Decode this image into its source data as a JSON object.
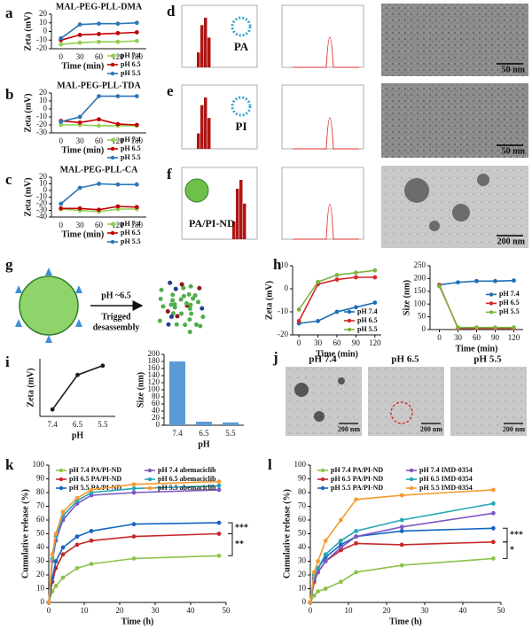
{
  "chart_data": [
    {
      "type": "line",
      "panel": "a",
      "title": "MAL-PEG-PLL-DMA",
      "ylabel": "Zeta (mV)",
      "xlabel": "Time (min)",
      "categories": [
        "0",
        "30",
        "60",
        "120",
        "180"
      ],
      "ylim": [
        -20,
        20
      ],
      "yticks": [
        -20,
        -10,
        0,
        10,
        20
      ],
      "legend": "below right",
      "series": [
        {
          "name": "pH 7.4",
          "color": "#92d050",
          "values": [
            -15,
            -13,
            -12,
            -12,
            -11
          ]
        },
        {
          "name": "pH 6.5",
          "color": "#c00000",
          "values": [
            -10,
            -4,
            -3,
            -2,
            -1
          ]
        },
        {
          "name": "pH 5.5",
          "color": "#2e75b6",
          "values": [
            -8,
            8,
            9,
            9,
            10
          ]
        }
      ]
    },
    {
      "type": "line",
      "panel": "b",
      "title": "MAL-PEG-PLL-TDA",
      "ylabel": "Zeta (mV)",
      "xlabel": "Time (min)",
      "categories": [
        "0",
        "30",
        "60",
        "120",
        "180"
      ],
      "ylim": [
        -30,
        20
      ],
      "yticks": [
        -30,
        -20,
        -10,
        0,
        10,
        20
      ],
      "legend": "below right",
      "series": [
        {
          "name": "pH 7.4",
          "color": "#92d050",
          "values": [
            -20,
            -20,
            -21,
            -21,
            -21
          ]
        },
        {
          "name": "pH 6.5",
          "color": "#c00000",
          "values": [
            -15,
            -17,
            -13,
            -19,
            -20
          ]
        },
        {
          "name": "pH 5.5",
          "color": "#2e75b6",
          "values": [
            -16,
            -10,
            16,
            16,
            16
          ]
        }
      ]
    },
    {
      "type": "line",
      "panel": "c",
      "title": "MAL-PEG-PLL-CA",
      "ylabel": "Zeta (mV)",
      "xlabel": "Time (min)",
      "categories": [
        "0",
        "30",
        "60",
        "120",
        "180"
      ],
      "ylim": [
        -40,
        20
      ],
      "yticks": [
        -40,
        -30,
        -20,
        -10,
        0,
        10,
        20
      ],
      "legend": "below right",
      "series": [
        {
          "name": "pH 7.4",
          "color": "#92d050",
          "values": [
            -28,
            -30,
            -32,
            -28,
            -28
          ]
        },
        {
          "name": "pH 6.5",
          "color": "#c00000",
          "values": [
            -27,
            -27,
            -29,
            -24,
            -25
          ]
        },
        {
          "name": "pH 5.5",
          "color": "#2e75b6",
          "values": [
            -20,
            4,
            10,
            9,
            9
          ]
        }
      ]
    },
    {
      "type": "line",
      "panel": "h",
      "ylabel": "Zeta (mV)",
      "xlabel": "Time (min)",
      "x": [
        0,
        30,
        60,
        90,
        120
      ],
      "xlim": [
        -10,
        130
      ],
      "xticks": [
        0,
        30,
        60,
        90,
        120
      ],
      "ylim": [
        -20,
        10
      ],
      "yticks": [
        -20,
        -10,
        0,
        10
      ],
      "legend": "lower right",
      "series": [
        {
          "name": "pH 7.4",
          "color": "#1f6fb5",
          "values": [
            -15,
            -14,
            -10,
            -8,
            -6
          ]
        },
        {
          "name": "pH 6.5",
          "color": "#d62728",
          "values": [
            -14,
            2,
            4,
            5,
            5
          ]
        },
        {
          "name": "pH 5.5",
          "color": "#7cb342",
          "values": [
            -9,
            3,
            6,
            7,
            8
          ]
        }
      ]
    },
    {
      "type": "line",
      "ylabel": "Size (nm)",
      "xlabel": "Time (min)",
      "x": [
        0,
        30,
        60,
        90,
        120
      ],
      "xlim": [
        -15,
        135
      ],
      "xticks": [
        0,
        30,
        60,
        90,
        120
      ],
      "ylim": [
        0,
        250
      ],
      "yticks": [
        0,
        50,
        100,
        150,
        200,
        250
      ],
      "legend": "right",
      "series": [
        {
          "name": "pH 7.4",
          "color": "#1f6fb5",
          "values": [
            175,
            185,
            190,
            190,
            192
          ]
        },
        {
          "name": "pH 6.5",
          "color": "#d62728",
          "values": [
            175,
            5,
            5,
            5,
            5
          ]
        },
        {
          "name": "pH 5.5",
          "color": "#7cb342",
          "values": [
            170,
            8,
            8,
            8,
            8
          ]
        }
      ]
    },
    {
      "type": "line",
      "panel": "i",
      "ylabel": "Zeta (mV)",
      "xlabel": "pH",
      "categories": [
        "7.4",
        "6.5",
        "5.5"
      ],
      "ylim": [
        -15,
        10
      ],
      "series": [
        {
          "color": "#1a1a1a",
          "values": [
            -12,
            3,
            7
          ]
        }
      ]
    },
    {
      "type": "bar",
      "ylabel": "Size (nm)",
      "xlabel": "pH",
      "categories": [
        "7.4",
        "6.5",
        "5.5"
      ],
      "ylim": [
        0,
        200
      ],
      "yticks": [
        0,
        20,
        40,
        60,
        80,
        100,
        120,
        140,
        160,
        180,
        200
      ],
      "series": [
        {
          "color": "#5b9bd5",
          "values": [
            180,
            10,
            8
          ]
        }
      ]
    },
    {
      "type": "line",
      "panel": "k",
      "ylabel": "Cumulative release (%)",
      "xlabel": "Time (h)",
      "x": [
        0,
        1,
        2,
        4,
        8,
        12,
        24,
        48
      ],
      "xlim": [
        0,
        50
      ],
      "xticks": [
        0,
        10,
        20,
        30,
        40,
        50
      ],
      "ylim": [
        0,
        100
      ],
      "yticks": [
        0,
        10,
        20,
        30,
        40,
        50,
        60,
        70,
        80,
        90,
        100
      ],
      "legend": "upper left",
      "annotations": [
        "***",
        "**"
      ],
      "series": [
        {
          "name": "pH 7.4 PA/PI-ND",
          "color": "#8bc34a",
          "values": [
            0,
            8,
            12,
            18,
            25,
            28,
            32,
            34
          ]
        },
        {
          "name": "pH 6.5 PA/PI-ND",
          "color": "#c62828",
          "values": [
            0,
            15,
            25,
            35,
            42,
            45,
            48,
            50
          ]
        },
        {
          "name": "pH 5.5 PA/PI-ND",
          "color": "#1565c0",
          "values": [
            0,
            18,
            30,
            40,
            48,
            52,
            57,
            58
          ]
        },
        {
          "name": "pH 7.4 abemaciclib",
          "color": "#7e57c2",
          "values": [
            0,
            30,
            45,
            60,
            72,
            78,
            80,
            82
          ]
        },
        {
          "name": "pH 6.5 abemaciclib",
          "color": "#26a6b8",
          "values": [
            0,
            32,
            48,
            63,
            74,
            80,
            83,
            85
          ]
        },
        {
          "name": "pH 5.5 abemaciclib",
          "color": "#f39c32",
          "values": [
            0,
            35,
            50,
            66,
            76,
            82,
            86,
            88
          ]
        }
      ]
    },
    {
      "type": "line",
      "panel": "l",
      "ylabel": "Cumulative release (%)",
      "xlabel": "Time (h)",
      "x": [
        0,
        1,
        2,
        4,
        8,
        12,
        24,
        48
      ],
      "xlim": [
        0,
        50
      ],
      "xticks": [
        0,
        10,
        20,
        30,
        40,
        50
      ],
      "ylim": [
        0,
        100
      ],
      "yticks": [
        0,
        10,
        20,
        30,
        40,
        50,
        60,
        70,
        80,
        90,
        100
      ],
      "legend": "upper left",
      "annotations": [
        "***",
        "*"
      ],
      "series": [
        {
          "name": "pH 7.4 PA/PI-ND",
          "color": "#8bc34a",
          "values": [
            0,
            5,
            8,
            10,
            15,
            22,
            27,
            32
          ]
        },
        {
          "name": "pH 6.5 PA/PI-ND",
          "color": "#c62828",
          "values": [
            0,
            15,
            22,
            30,
            38,
            43,
            42,
            44
          ]
        },
        {
          "name": "pH 5.5 PA/PI-ND",
          "color": "#1565c0",
          "values": [
            0,
            17,
            25,
            33,
            42,
            48,
            52,
            54
          ]
        },
        {
          "name": "pH 7.4 IMD-0354",
          "color": "#7e57c2",
          "values": [
            0,
            18,
            22,
            30,
            40,
            48,
            55,
            65
          ]
        },
        {
          "name": "pH 6.5 IMD-0354",
          "color": "#26a6b8",
          "values": [
            0,
            20,
            25,
            35,
            45,
            52,
            60,
            72
          ]
        },
        {
          "name": "pH 5.5 IMD-0354",
          "color": "#f39c32",
          "values": [
            0,
            22,
            30,
            45,
            60,
            75,
            78,
            82
          ]
        }
      ]
    }
  ],
  "figures": [
    {
      "panel": "d",
      "label": "PA",
      "scale": "50 nm"
    },
    {
      "panel": "e",
      "label": "PI",
      "scale": "50 nm"
    },
    {
      "panel": "f",
      "label": "PA/PI-ND",
      "scale": "200 nm"
    }
  ],
  "schematic": {
    "panel": "g",
    "arrow_text": "pH ~6.5",
    "caption": [
      "Trigged",
      "desassembly"
    ]
  },
  "micrographs": {
    "panel": "j",
    "items": [
      {
        "label": "pH 7.4",
        "scale": "200 nm"
      },
      {
        "label": "pH 6.5",
        "scale": "200 nm"
      },
      {
        "label": "pH 5.5",
        "scale": "200 nm"
      }
    ]
  }
}
